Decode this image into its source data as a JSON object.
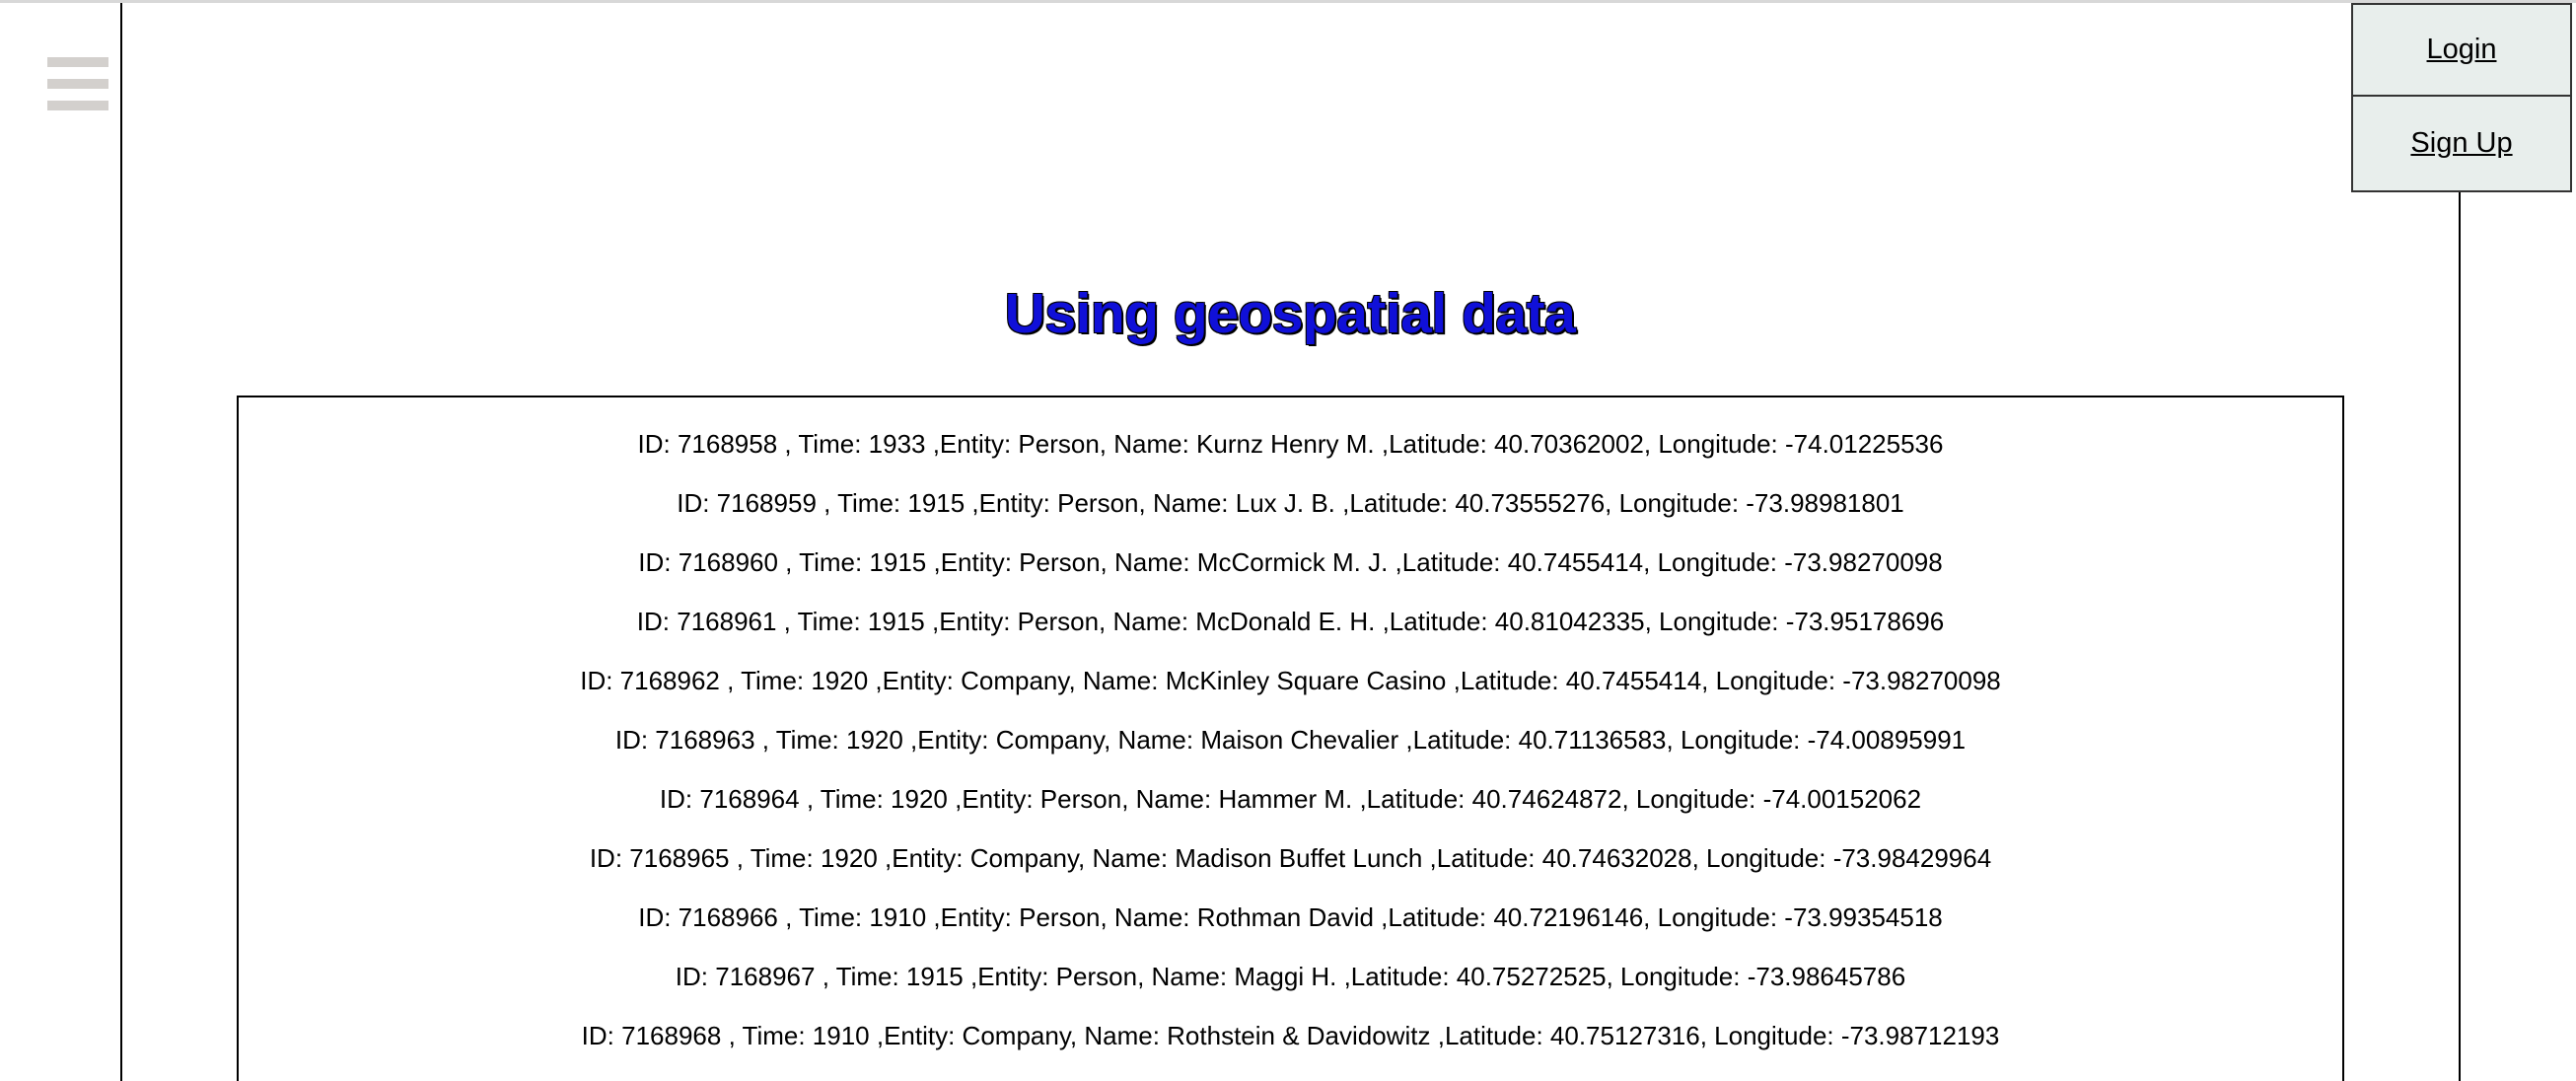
{
  "header": {
    "menu_icon": "hamburger-menu-icon",
    "login_label": "Login",
    "signup_label": "Sign Up"
  },
  "main": {
    "title": "Using geospatial data",
    "records": [
      "ID: 7168958 , Time: 1933 ,Entity: Person, Name: Kurnz Henry M. ,Latitude: 40.70362002, Longitude: -74.01225536",
      "ID: 7168959 , Time: 1915 ,Entity: Person, Name: Lux J. B. ,Latitude: 40.73555276, Longitude: -73.98981801",
      "ID: 7168960 , Time: 1915 ,Entity: Person, Name: McCormick M. J. ,Latitude: 40.7455414, Longitude: -73.98270098",
      "ID: 7168961 , Time: 1915 ,Entity: Person, Name: McDonald E. H. ,Latitude: 40.81042335, Longitude: -73.95178696",
      "ID: 7168962 , Time: 1920 ,Entity: Company, Name: McKinley Square Casino ,Latitude: 40.7455414, Longitude: -73.98270098",
      "ID: 7168963 , Time: 1920 ,Entity: Company, Name: Maison Chevalier ,Latitude: 40.71136583, Longitude: -74.00895991",
      "ID: 7168964 , Time: 1920 ,Entity: Person, Name: Hammer M. ,Latitude: 40.74624872, Longitude: -74.00152062",
      "ID: 7168965 , Time: 1920 ,Entity: Company, Name: Madison Buffet Lunch ,Latitude: 40.74632028, Longitude: -73.98429964",
      "ID: 7168966 , Time: 1910 ,Entity: Person, Name: Rothman David ,Latitude: 40.72196146, Longitude: -73.99354518",
      "ID: 7168967 , Time: 1915 ,Entity: Person, Name: Maggi H. ,Latitude: 40.75272525, Longitude: -73.98645786",
      "ID: 7168968 , Time: 1910 ,Entity: Company, Name: Rothstein & Davidowitz ,Latitude: 40.75127316, Longitude: -73.98712193"
    ]
  }
}
